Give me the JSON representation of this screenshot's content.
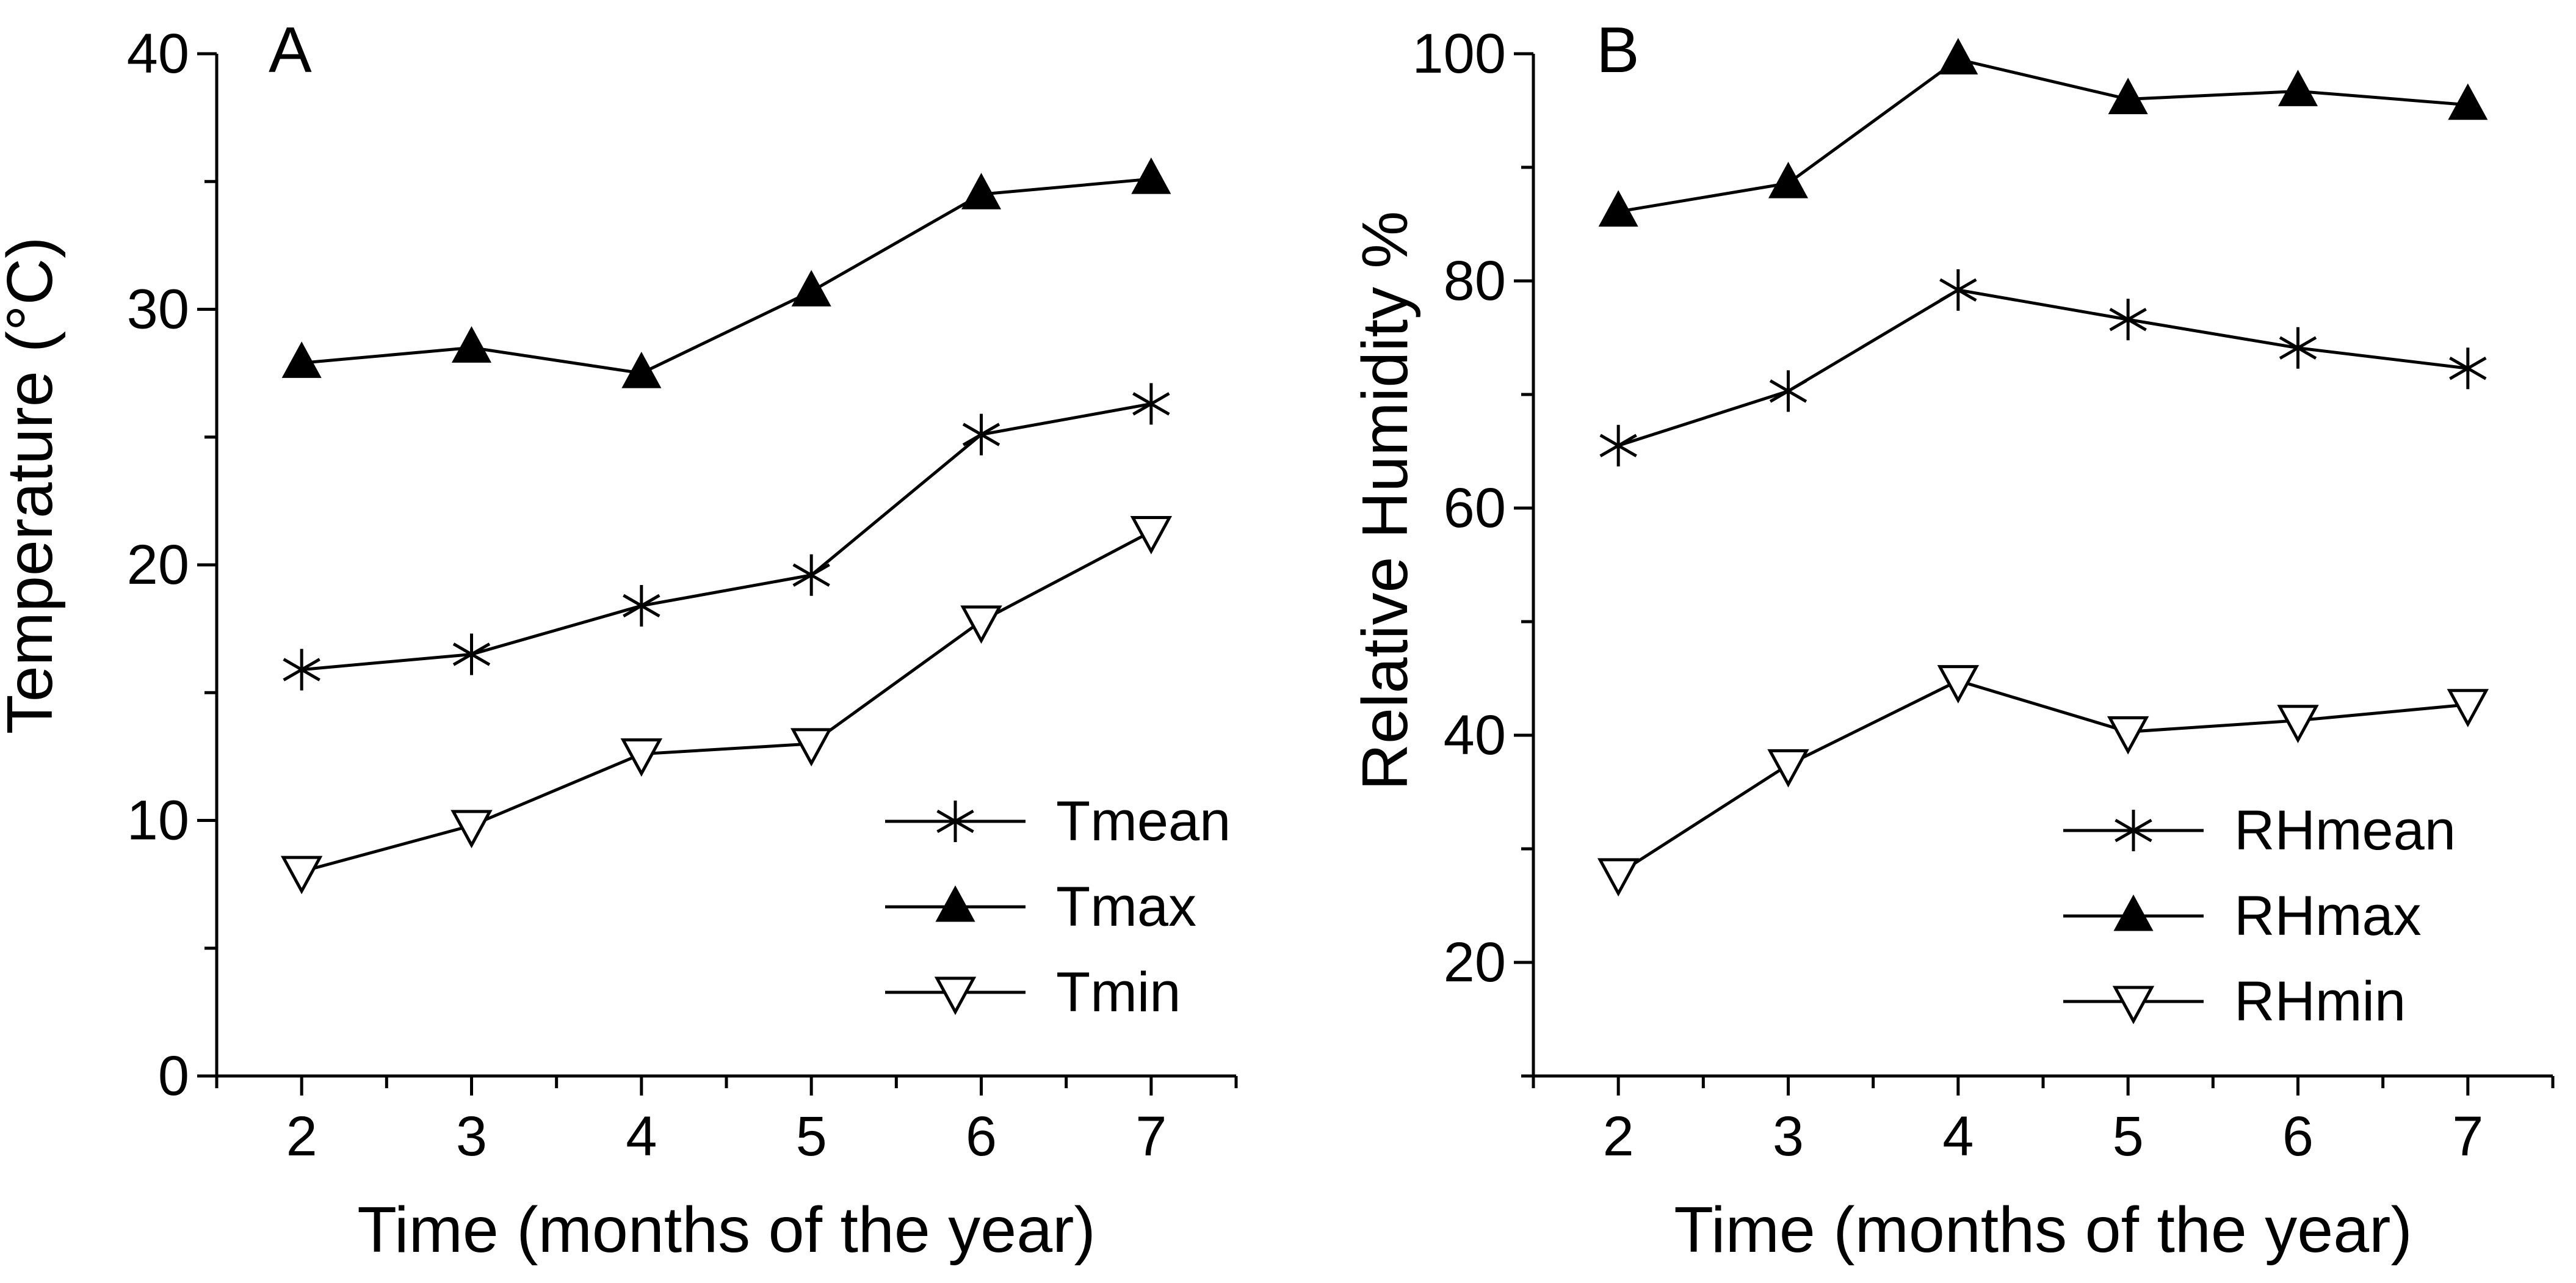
{
  "chart_data": [
    {
      "type": "line",
      "panel_label": "A",
      "title": "",
      "xlabel": "Time (months of the year)",
      "ylabel": "Temperature",
      "ylabel_unit": "(°C)",
      "x": [
        2,
        3,
        4,
        5,
        6,
        7
      ],
      "xlim": [
        1.5,
        7.5
      ],
      "ylim": [
        0,
        40
      ],
      "x_ticks": [
        "2",
        "3",
        "4",
        "5",
        "6",
        "7"
      ],
      "y_ticks": [
        "0",
        "10",
        "20",
        "30",
        "40"
      ],
      "grid": false,
      "legend_position": "bottom-right",
      "series": [
        {
          "name": "Tmean",
          "marker": "asterisk",
          "values": [
            15.9,
            16.5,
            18.4,
            19.6,
            25.1,
            26.3
          ]
        },
        {
          "name": "Tmax",
          "marker": "filled-triangle-up",
          "values": [
            27.9,
            28.5,
            27.5,
            30.7,
            34.5,
            35.1
          ]
        },
        {
          "name": "Tmin",
          "marker": "open-triangle-down",
          "values": [
            8.0,
            9.8,
            12.6,
            13.0,
            17.8,
            21.3
          ]
        }
      ]
    },
    {
      "type": "line",
      "panel_label": "B",
      "title": "",
      "xlabel": "Time (months of the year)",
      "ylabel": "Relative Humidity",
      "ylabel_unit": "%",
      "x": [
        2,
        3,
        4,
        5,
        6,
        7
      ],
      "xlim": [
        1.5,
        7.5
      ],
      "ylim": [
        10,
        100
      ],
      "x_ticks": [
        "2",
        "3",
        "4",
        "5",
        "6",
        "7"
      ],
      "y_ticks": [
        "20",
        "40",
        "60",
        "80",
        "100"
      ],
      "grid": false,
      "legend_position": "bottom-right",
      "series": [
        {
          "name": "RHmean",
          "marker": "asterisk",
          "values": [
            65.5,
            70.3,
            79.2,
            76.6,
            74.1,
            72.3
          ]
        },
        {
          "name": "RHmax",
          "marker": "filled-triangle-up",
          "values": [
            86.1,
            88.6,
            99.5,
            96.0,
            96.7,
            95.5
          ]
        },
        {
          "name": "RHmin",
          "marker": "open-triangle-down",
          "values": [
            27.8,
            37.4,
            44.8,
            40.3,
            41.3,
            42.7
          ]
        }
      ]
    }
  ]
}
